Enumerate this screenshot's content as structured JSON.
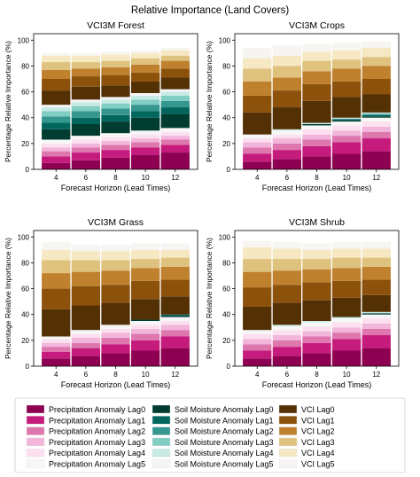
{
  "figure": {
    "title": "Relative Importance (Land Covers)"
  },
  "legend": {
    "columns": [
      [
        "Precipitation Anomaly Lag0",
        "Precipitation Anomaly Lag1",
        "Precipitation Anomaly Lag2",
        "Precipitation Anomaly Lag3",
        "Precipitation Anomaly Lag4",
        "Precipitation Anomaly Lag5"
      ],
      [
        "Soil Moisture Anomaly Lag0",
        "Soil Moisture Anomaly Lag1",
        "Soil Moisture Anomaly Lag2",
        "Soil Moisture Anomaly Lag3",
        "Soil Moisture Anomaly Lag4",
        "Soil Moisture Anomaly Lag5"
      ],
      [
        "VCI Lag0",
        "VCI Lag1",
        "VCI Lag2",
        "VCI Lag3",
        "VCI Lag4",
        "VCI Lag5"
      ]
    ]
  },
  "colors": {
    "Precipitation Anomaly Lag0": "#8e0152",
    "Precipitation Anomaly Lag1": "#c51b7d",
    "Precipitation Anomaly Lag2": "#de77ae",
    "Precipitation Anomaly Lag3": "#f1b6da",
    "Precipitation Anomaly Lag4": "#fde0ef",
    "Precipitation Anomaly Lag5": "#f7f7f7",
    "Soil Moisture Anomaly Lag0": "#003c30",
    "Soil Moisture Anomaly Lag1": "#01665e",
    "Soil Moisture Anomaly Lag2": "#35978f",
    "Soil Moisture Anomaly Lag3": "#80cdc1",
    "Soil Moisture Anomaly Lag4": "#c7eae5",
    "Soil Moisture Anomaly Lag5": "#f5f5f5",
    "VCI Lag0": "#543005",
    "VCI Lag1": "#8c510a",
    "VCI Lag2": "#bf812d",
    "VCI Lag3": "#dfc27d",
    "VCI Lag4": "#f6e8c3",
    "VCI Lag5": "#f7f5f2"
  },
  "chart_data": [
    {
      "type": "bar",
      "stacked": true,
      "title": "VCI3M Forest",
      "xlabel": "Forecast Horizon (Lead Times)",
      "ylabel": "Percentage Relative Importance (%)",
      "categories": [
        "4",
        "6",
        "8",
        "10",
        "12"
      ],
      "ylim": [
        0,
        105
      ],
      "yticks": [
        0,
        20,
        40,
        60,
        80,
        100
      ],
      "grid": false,
      "series": [
        {
          "name": "Precipitation Anomaly Lag0",
          "values": [
            5,
            7,
            9,
            11,
            13
          ]
        },
        {
          "name": "Precipitation Anomaly Lag1",
          "values": [
            5,
            6,
            6,
            6,
            6
          ]
        },
        {
          "name": "Precipitation Anomaly Lag2",
          "values": [
            4,
            4,
            4,
            4,
            4
          ]
        },
        {
          "name": "Precipitation Anomaly Lag3",
          "values": [
            3,
            3,
            3,
            3,
            3
          ]
        },
        {
          "name": "Precipitation Anomaly Lag4",
          "values": [
            3,
            3,
            3,
            3,
            3
          ]
        },
        {
          "name": "Precipitation Anomaly Lag5",
          "values": [
            3,
            3,
            3,
            3,
            3
          ]
        },
        {
          "name": "Soil Moisture Anomaly Lag0",
          "values": [
            8,
            9,
            9,
            10,
            11
          ]
        },
        {
          "name": "Soil Moisture Anomaly Lag1",
          "values": [
            5,
            5,
            5,
            5,
            5
          ]
        },
        {
          "name": "Soil Moisture Anomaly Lag2",
          "values": [
            5,
            5,
            5,
            5,
            5
          ]
        },
        {
          "name": "Soil Moisture Anomaly Lag3",
          "values": [
            4,
            4,
            4,
            4,
            4
          ]
        },
        {
          "name": "Soil Moisture Anomaly Lag4",
          "values": [
            3,
            3,
            3,
            3,
            3
          ]
        },
        {
          "name": "Soil Moisture Anomaly Lag5",
          "values": [
            2,
            2,
            2,
            2,
            2
          ]
        },
        {
          "name": "VCI Lag0",
          "values": [
            11,
            10,
            9,
            9,
            9
          ]
        },
        {
          "name": "VCI Lag1",
          "values": [
            9,
            8,
            8,
            7,
            7
          ]
        },
        {
          "name": "VCI Lag2",
          "values": [
            7,
            6,
            6,
            6,
            6
          ]
        },
        {
          "name": "VCI Lag3",
          "values": [
            6,
            5,
            5,
            5,
            4
          ]
        },
        {
          "name": "VCI Lag4",
          "values": [
            5,
            5,
            5,
            4,
            4
          ]
        },
        {
          "name": "VCI Lag5",
          "values": [
            2,
            2,
            2,
            2,
            2
          ]
        }
      ]
    },
    {
      "type": "bar",
      "stacked": true,
      "title": "VCI3M Crops",
      "xlabel": "Forecast Horizon (Lead Times)",
      "ylabel": "Percentage Relative Importance (%)",
      "categories": [
        "4",
        "6",
        "8",
        "10",
        "12"
      ],
      "ylim": [
        0,
        105
      ],
      "yticks": [
        0,
        20,
        40,
        60,
        80,
        100
      ],
      "grid": false,
      "series": [
        {
          "name": "Precipitation Anomaly Lag0",
          "values": [
            6,
            8,
            10,
            12,
            14
          ]
        },
        {
          "name": "Precipitation Anomaly Lag1",
          "values": [
            6,
            7,
            8,
            9,
            10
          ]
        },
        {
          "name": "Precipitation Anomaly Lag2",
          "values": [
            5,
            5,
            5,
            5,
            5
          ]
        },
        {
          "name": "Precipitation Anomaly Lag3",
          "values": [
            4,
            4,
            4,
            4,
            4
          ]
        },
        {
          "name": "Precipitation Anomaly Lag4",
          "values": [
            3,
            3,
            4,
            4,
            4
          ]
        },
        {
          "name": "Precipitation Anomaly Lag5",
          "values": [
            3,
            3,
            3,
            3,
            3
          ]
        },
        {
          "name": "Soil Moisture Anomaly Lag0",
          "values": [
            0,
            0,
            1,
            1,
            1
          ]
        },
        {
          "name": "Soil Moisture Anomaly Lag1",
          "values": [
            0,
            0,
            0,
            1,
            1
          ]
        },
        {
          "name": "Soil Moisture Anomaly Lag2",
          "values": [
            0,
            0,
            0,
            0,
            1
          ]
        },
        {
          "name": "Soil Moisture Anomaly Lag3",
          "values": [
            0,
            0,
            0,
            0,
            0
          ]
        },
        {
          "name": "Soil Moisture Anomaly Lag4",
          "values": [
            0,
            1,
            1,
            1,
            1
          ]
        },
        {
          "name": "Soil Moisture Anomaly Lag5",
          "values": [
            0,
            0,
            0,
            0,
            0
          ]
        },
        {
          "name": "VCI Lag0",
          "values": [
            17,
            17,
            17,
            16,
            14
          ]
        },
        {
          "name": "VCI Lag1",
          "values": [
            13,
            13,
            13,
            12,
            12
          ]
        },
        {
          "name": "VCI Lag2",
          "values": [
            11,
            10,
            10,
            10,
            10
          ]
        },
        {
          "name": "VCI Lag3",
          "values": [
            10,
            9,
            8,
            7,
            7
          ]
        },
        {
          "name": "VCI Lag4",
          "values": [
            8,
            8,
            7,
            7,
            7
          ]
        },
        {
          "name": "VCI Lag5",
          "values": [
            8,
            8,
            6,
            6,
            5
          ]
        }
      ]
    },
    {
      "type": "bar",
      "stacked": true,
      "title": "VCI3M Grass",
      "xlabel": "Forecast Horizon (Lead Times)",
      "ylabel": "Percentage Relative Importance (%)",
      "categories": [
        "4",
        "6",
        "8",
        "10",
        "12"
      ],
      "ylim": [
        0,
        105
      ],
      "yticks": [
        0,
        20,
        40,
        60,
        80,
        100
      ],
      "grid": false,
      "series": [
        {
          "name": "Precipitation Anomaly Lag0",
          "values": [
            6,
            8,
            10,
            12,
            14
          ]
        },
        {
          "name": "Precipitation Anomaly Lag1",
          "values": [
            5,
            6,
            7,
            8,
            9
          ]
        },
        {
          "name": "Precipitation Anomaly Lag2",
          "values": [
            4,
            4,
            5,
            5,
            5
          ]
        },
        {
          "name": "Precipitation Anomaly Lag3",
          "values": [
            3,
            4,
            4,
            4,
            4
          ]
        },
        {
          "name": "Precipitation Anomaly Lag4",
          "values": [
            3,
            3,
            3,
            3,
            3
          ]
        },
        {
          "name": "Precipitation Anomaly Lag5",
          "values": [
            2,
            3,
            3,
            3,
            3
          ]
        },
        {
          "name": "Soil Moisture Anomaly Lag0",
          "values": [
            0,
            0,
            0,
            1,
            1
          ]
        },
        {
          "name": "Soil Moisture Anomaly Lag1",
          "values": [
            0,
            0,
            0,
            0,
            1
          ]
        },
        {
          "name": "Soil Moisture Anomaly Lag2",
          "values": [
            0,
            0,
            0,
            0,
            0
          ]
        },
        {
          "name": "Soil Moisture Anomaly Lag3",
          "values": [
            0,
            0,
            0,
            0,
            0
          ]
        },
        {
          "name": "Soil Moisture Anomaly Lag4",
          "values": [
            0,
            0,
            0,
            0,
            0
          ]
        },
        {
          "name": "Soil Moisture Anomaly Lag5",
          "values": [
            0,
            0,
            0,
            0,
            0
          ]
        },
        {
          "name": "VCI Lag0",
          "values": [
            21,
            19,
            17,
            16,
            14
          ]
        },
        {
          "name": "VCI Lag1",
          "values": [
            16,
            15,
            14,
            14,
            13
          ]
        },
        {
          "name": "VCI Lag2",
          "values": [
            12,
            11,
            11,
            10,
            10
          ]
        },
        {
          "name": "VCI Lag3",
          "values": [
            10,
            9,
            8,
            7,
            7
          ]
        },
        {
          "name": "VCI Lag4",
          "values": [
            8,
            7,
            7,
            7,
            6
          ]
        },
        {
          "name": "VCI Lag5",
          "values": [
            6,
            5,
            5,
            5,
            5
          ]
        }
      ]
    },
    {
      "type": "bar",
      "stacked": true,
      "title": "VCI3M Shrub",
      "xlabel": "Forecast Horizon (Lead Times)",
      "ylabel": "Percentage Relative Importance (%)",
      "categories": [
        "4",
        "6",
        "8",
        "10",
        "12"
      ],
      "ylim": [
        0,
        105
      ],
      "yticks": [
        0,
        20,
        40,
        60,
        80,
        100
      ],
      "grid": false,
      "series": [
        {
          "name": "Precipitation Anomaly Lag0",
          "values": [
            6,
            8,
            10,
            12,
            14
          ]
        },
        {
          "name": "Precipitation Anomaly Lag1",
          "values": [
            6,
            7,
            8,
            9,
            10
          ]
        },
        {
          "name": "Precipitation Anomaly Lag2",
          "values": [
            5,
            5,
            5,
            5,
            5
          ]
        },
        {
          "name": "Precipitation Anomaly Lag3",
          "values": [
            4,
            4,
            4,
            4,
            4
          ]
        },
        {
          "name": "Precipitation Anomaly Lag4",
          "values": [
            4,
            4,
            4,
            4,
            4
          ]
        },
        {
          "name": "Precipitation Anomaly Lag5",
          "values": [
            3,
            3,
            3,
            3,
            3
          ]
        },
        {
          "name": "Soil Moisture Anomaly Lag0",
          "values": [
            0,
            0,
            0,
            0,
            1
          ]
        },
        {
          "name": "Soil Moisture Anomaly Lag1",
          "values": [
            0,
            0,
            0,
            0,
            0
          ]
        },
        {
          "name": "Soil Moisture Anomaly Lag2",
          "values": [
            0,
            0,
            0,
            0,
            0
          ]
        },
        {
          "name": "Soil Moisture Anomaly Lag3",
          "values": [
            0,
            0,
            0,
            0,
            0
          ]
        },
        {
          "name": "Soil Moisture Anomaly Lag4",
          "values": [
            0,
            1,
            1,
            1,
            1
          ]
        },
        {
          "name": "Soil Moisture Anomaly Lag5",
          "values": [
            0,
            0,
            0,
            0,
            0
          ]
        },
        {
          "name": "VCI Lag0",
          "values": [
            18,
            17,
            16,
            15,
            13
          ]
        },
        {
          "name": "VCI Lag1",
          "values": [
            15,
            14,
            14,
            13,
            12
          ]
        },
        {
          "name": "VCI Lag2",
          "values": [
            12,
            11,
            10,
            10,
            10
          ]
        },
        {
          "name": "VCI Lag3",
          "values": [
            10,
            9,
            8,
            8,
            7
          ]
        },
        {
          "name": "VCI Lag4",
          "values": [
            9,
            8,
            7,
            7,
            7
          ]
        },
        {
          "name": "VCI Lag5",
          "values": [
            5,
            5,
            5,
            5,
            5
          ]
        }
      ]
    }
  ]
}
